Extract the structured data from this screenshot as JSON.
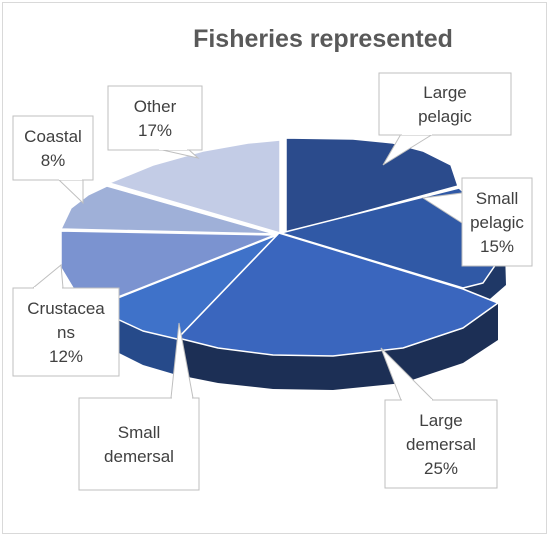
{
  "chart_data": {
    "type": "pie",
    "title": "Fisheries represented",
    "style": "3d-exploded",
    "slices": [
      {
        "key": "large_pelagic",
        "label_lines": [
          "Large",
          "pelagic"
        ],
        "value": null,
        "color": "#2b4b8c"
      },
      {
        "key": "small_pelagic",
        "label_lines": [
          "Small",
          "pelagic",
          "15%"
        ],
        "value": 15,
        "color": "#3059a6"
      },
      {
        "key": "large_demersal",
        "label_lines": [
          "Large",
          "demersal",
          "25%"
        ],
        "value": 25,
        "color": "#3a66be"
      },
      {
        "key": "small_demersal",
        "label_lines": [
          "Small",
          "demersal"
        ],
        "value": null,
        "color": "#3f72c9"
      },
      {
        "key": "crustaceans",
        "label_lines": [
          "Crustacea",
          "ns",
          "12%"
        ],
        "value": 12,
        "color": "#7b93d0"
      },
      {
        "key": "coastal",
        "label_lines": [
          "Coastal",
          "8%"
        ],
        "value": 8,
        "color": "#9fb0d8"
      },
      {
        "key": "other",
        "label_lines": [
          "Other",
          "17%"
        ],
        "value": 17,
        "color": "#c3cce6"
      }
    ]
  }
}
